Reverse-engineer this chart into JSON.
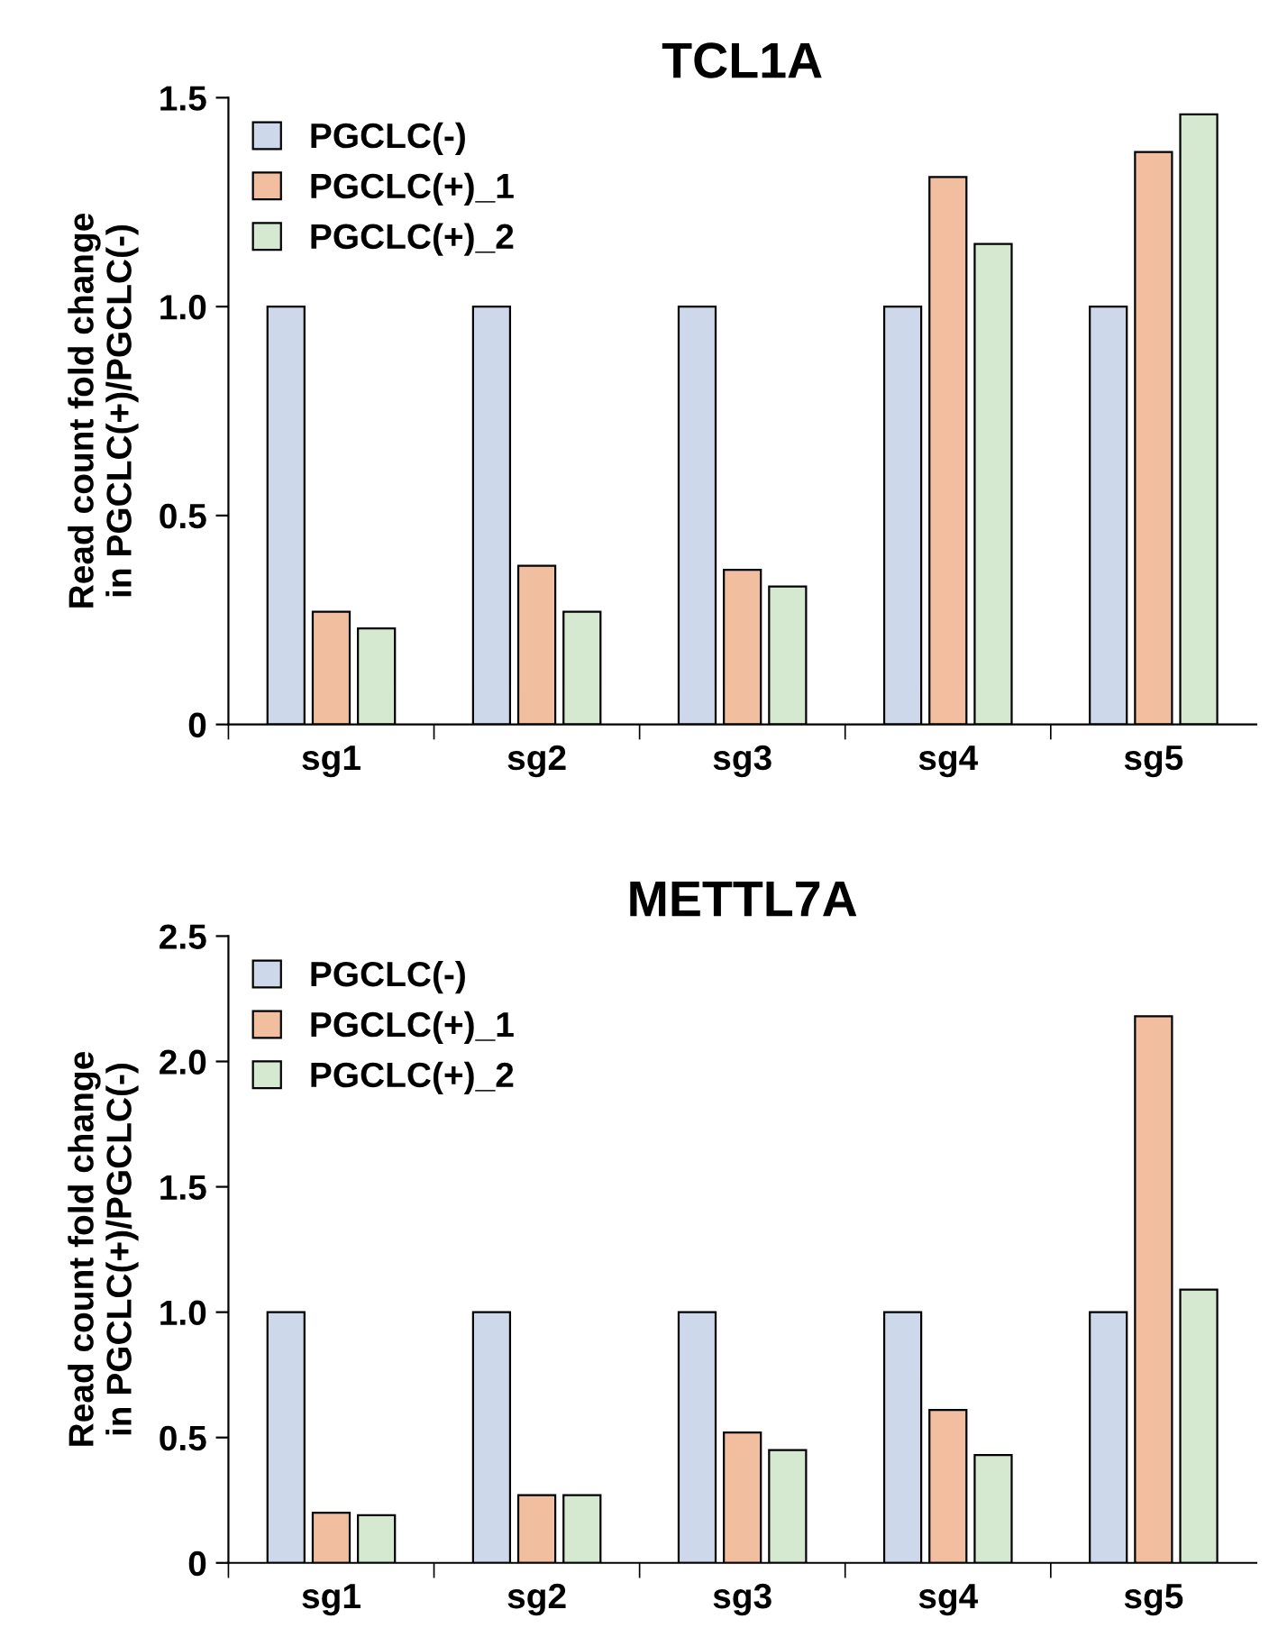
{
  "chart_data": [
    {
      "type": "bar",
      "title": "TCL1A",
      "ylabel": "Read count fold change\nin PGCLC(+)/PGCLC(-)",
      "categories": [
        "sg1",
        "sg2",
        "sg3",
        "sg4",
        "sg5"
      ],
      "series": [
        {
          "name": "PGCLC(-)",
          "color": "#cdd9ea",
          "values": [
            1.0,
            1.0,
            1.0,
            1.0,
            1.0
          ]
        },
        {
          "name": "PGCLC(+)_1",
          "color": "#f2bea0",
          "values": [
            0.27,
            0.38,
            0.37,
            1.31,
            1.37
          ]
        },
        {
          "name": "PGCLC(+)_2",
          "color": "#d5e8d0",
          "values": [
            0.23,
            0.27,
            0.33,
            1.15,
            1.46
          ]
        }
      ],
      "ylim": [
        0,
        1.5
      ],
      "yticks": [
        0,
        {
          "value": 0.5,
          "label": "0.5"
        },
        {
          "value": 1.0,
          "label": "1.0"
        },
        {
          "value": 1.5,
          "label": "1.5"
        }
      ],
      "grid": false,
      "legend": "top left"
    },
    {
      "type": "bar",
      "title": "METTL7A",
      "ylabel": "Read count fold change\nin PGCLC(+)/PGCLC(-)",
      "categories": [
        "sg1",
        "sg2",
        "sg3",
        "sg4",
        "sg5"
      ],
      "series": [
        {
          "name": "PGCLC(-)",
          "color": "#cdd9ea",
          "values": [
            1.0,
            1.0,
            1.0,
            1.0,
            1.0
          ]
        },
        {
          "name": "PGCLC(+)_1",
          "color": "#f2bea0",
          "values": [
            0.2,
            0.27,
            0.52,
            0.61,
            2.18
          ]
        },
        {
          "name": "PGCLC(+)_2",
          "color": "#d5e8d0",
          "values": [
            0.19,
            0.27,
            0.45,
            0.43,
            1.09
          ]
        }
      ],
      "ylim": [
        0,
        2.5
      ],
      "yticks": [
        0,
        {
          "value": 0.5,
          "label": "0.5"
        },
        {
          "value": 1.0,
          "label": "1.0"
        },
        {
          "value": 1.5,
          "label": "1.5"
        },
        {
          "value": 2.0,
          "label": "2.0"
        },
        {
          "value": 2.5,
          "label": "2.5"
        }
      ],
      "grid": false,
      "legend": "upper left"
    }
  ]
}
